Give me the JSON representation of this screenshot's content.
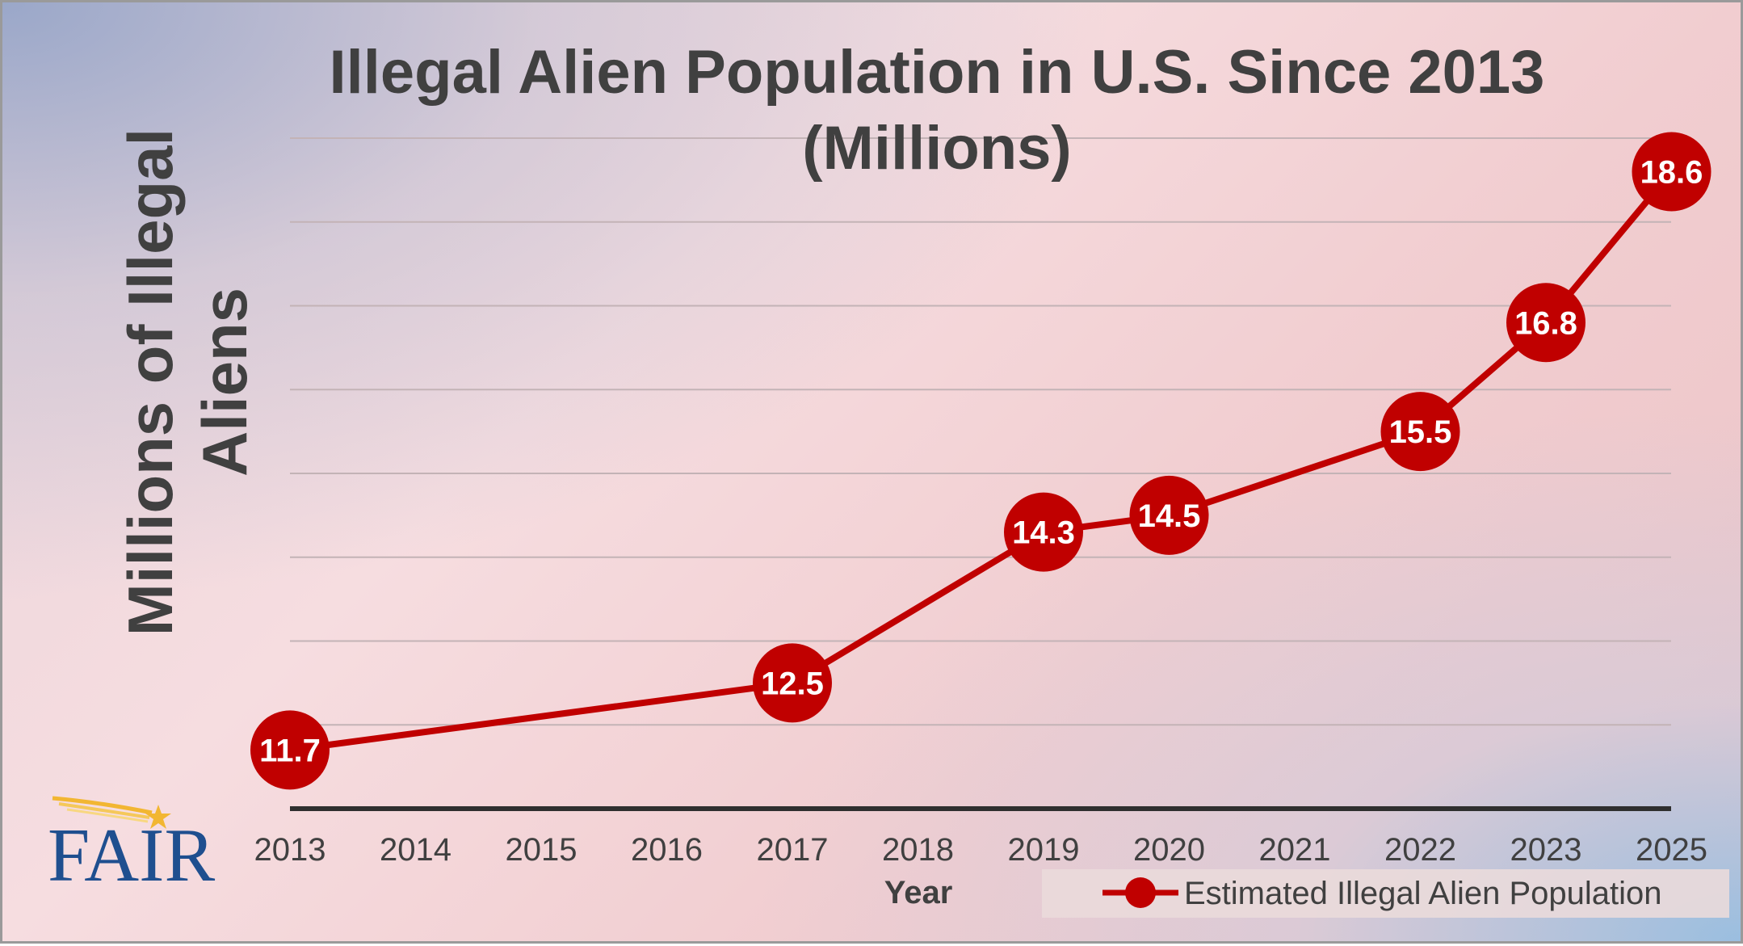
{
  "chart_data": {
    "type": "line",
    "title_line1": "Illegal Alien Population in U.S. Since 2013",
    "title_line2": "(Millions)",
    "ylabel_line1": "Millions of Illegal",
    "ylabel_line2": "Aliens",
    "xlabel": "Year",
    "categories": [
      "2013",
      "2014",
      "2015",
      "2016",
      "2017",
      "2018",
      "2019",
      "2020",
      "2021",
      "2022",
      "2023",
      "2025"
    ],
    "series": [
      {
        "name": "Estimated Illegal Alien Population",
        "color": "#c00000",
        "values": [
          11.7,
          null,
          null,
          null,
          12.5,
          null,
          14.3,
          14.5,
          null,
          15.5,
          16.8,
          18.6
        ]
      }
    ],
    "ylim": [
      11,
      19
    ],
    "y_gridline_step": 1,
    "y_tick_labels_shown": false,
    "grid": true,
    "legend_position": "bottom-right",
    "data_labels": true
  },
  "logo": {
    "text": "FAIR",
    "color": "#1f4f8f",
    "accent": "#f2b632",
    "icon": "shooting-star-icon"
  }
}
